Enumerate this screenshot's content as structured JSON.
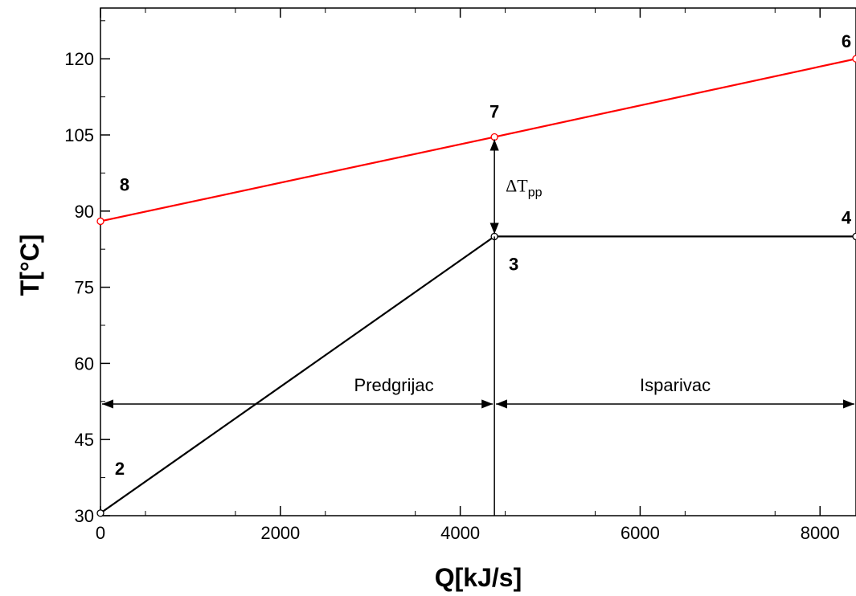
{
  "chart_data": {
    "type": "line",
    "xlabel": "Q[kJ/s]",
    "ylabel": "T[°C]",
    "xlim": [
      0,
      8400
    ],
    "ylim": [
      30,
      130
    ],
    "xticks": [
      0,
      2000,
      4000,
      6000,
      8000
    ],
    "yticks": [
      30,
      45,
      60,
      75,
      90,
      105,
      120
    ],
    "grid": false,
    "legend": "none",
    "series": [
      {
        "color": "#ff0000",
        "points": [
          {
            "x": 0,
            "y": 88,
            "label": "8"
          },
          {
            "x": 4380,
            "y": 104.6,
            "label": "7"
          },
          {
            "x": 8400,
            "y": 120,
            "label": "6"
          }
        ]
      },
      {
        "color": "#000000",
        "points": [
          {
            "x": 0,
            "y": 30.5,
            "label": "2"
          },
          {
            "x": 4380,
            "y": 85,
            "label": "3"
          },
          {
            "x": 8400,
            "y": 85,
            "label": "4"
          }
        ]
      }
    ],
    "annotations": {
      "delta_t": {
        "main": "ΔT",
        "sub": "pp",
        "x": 4380,
        "from": 85,
        "to": 104.6
      },
      "regions": [
        {
          "label": "Predgrijac",
          "from": 0,
          "to": 4380,
          "y": 52
        },
        {
          "label": "Isparivac",
          "from": 4380,
          "to": 8400,
          "y": 52
        }
      ]
    }
  }
}
